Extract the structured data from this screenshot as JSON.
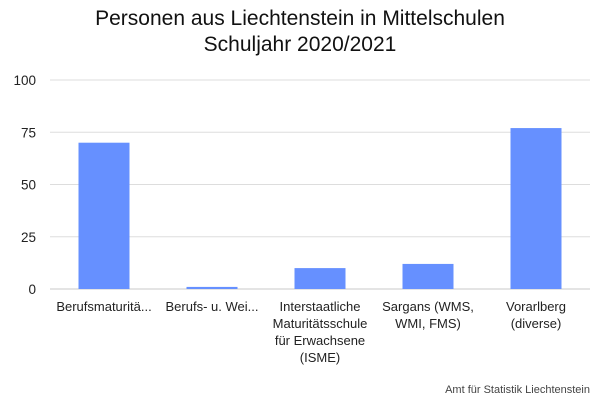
{
  "title_line1": "Personen aus Liechtenstein in Mittelschulen",
  "title_line2": "Schuljahr 2020/2021",
  "source": "Amt für Statistik Liechtenstein",
  "colors": {
    "bar": "#6690FF",
    "grid": "#DDDDDD",
    "axis": "#C8C8C8"
  },
  "chart_data": {
    "type": "bar",
    "title": "Personen aus Liechtenstein in Mittelschulen Schuljahr 2020/2021",
    "categories": [
      "Berufsmaturitätsschule",
      "Berufs- u. Weiterbildungszentrum",
      "Interstaatliche Maturitätsschule für Erwachsene (ISME)",
      "Sargans (WMS, WMI, FMS)",
      "Vorarlberg (diverse)"
    ],
    "category_labels_displayed": [
      "Berufsmaturitä...",
      "Berufs- u. Wei...",
      "Interstaatliche Maturitätsschule für Erwachsene (ISME)",
      "Sargans (WMS, WMI, FMS)",
      "Vorarlberg (diverse)"
    ],
    "values": [
      70,
      1,
      10,
      12,
      77
    ],
    "ylim": [
      0,
      100
    ],
    "yticks": [
      0,
      25,
      50,
      75,
      100
    ],
    "xlabel": "",
    "ylabel": "",
    "grid": true,
    "legend": "none"
  }
}
